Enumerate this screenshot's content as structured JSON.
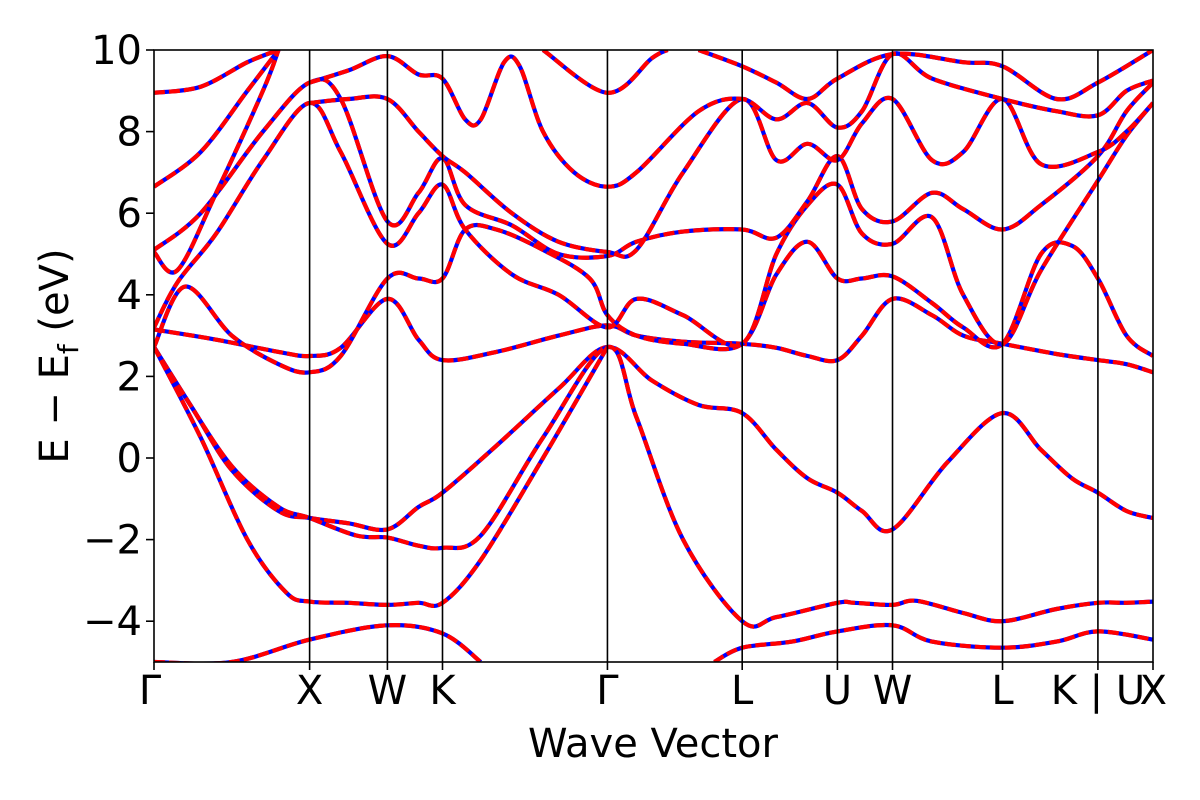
{
  "chart_data": {
    "type": "line",
    "xlabel": "Wave Vector",
    "ylabel": "E − E",
    "ylabel_sub": "f",
    "ylabel_unit": " (eV)",
    "ylim": [
      -5,
      10
    ],
    "yticks": [
      10,
      8,
      6,
      4,
      2,
      0,
      -2,
      -4
    ],
    "ytick_labels": [
      "10",
      "8",
      "6",
      "4",
      "2",
      "0",
      "−2",
      "−4"
    ],
    "grid": false,
    "legend": "none",
    "kpoints": [
      {
        "label": "Γ",
        "pos": 0
      },
      {
        "label": "X",
        "pos": 1.0
      },
      {
        "label": "W",
        "pos": 1.5
      },
      {
        "label": "K",
        "pos": 1.854
      },
      {
        "label": "Γ",
        "pos": 2.914
      },
      {
        "label": "L",
        "pos": 3.78
      },
      {
        "label": "U",
        "pos": 4.392
      },
      {
        "label": "W",
        "pos": 4.746
      },
      {
        "label": "L",
        "pos": 5.453
      },
      {
        "label": "K | U",
        "pos": 6.066
      },
      {
        "label": "X",
        "pos": 6.42
      }
    ],
    "colors": {
      "series_a": "#0000ff",
      "series_b": "#ff0000"
    },
    "series": [
      {
        "values": [
          [
            0,
            2.72
          ],
          [
            0.25,
            1.2
          ],
          [
            0.5,
            -0.3
          ],
          [
            0.8,
            -1.3
          ],
          [
            1.0,
            -1.47
          ],
          [
            1.25,
            -1.6
          ],
          [
            1.5,
            -1.75
          ],
          [
            1.7,
            -1.2
          ],
          [
            1.854,
            -0.85
          ],
          [
            2.2,
            0.3
          ],
          [
            2.6,
            1.7
          ],
          [
            2.914,
            2.72
          ],
          [
            3.2,
            1.9
          ],
          [
            3.5,
            1.3
          ],
          [
            3.78,
            1.1
          ],
          [
            4.0,
            0.2
          ],
          [
            4.2,
            -0.5
          ],
          [
            4.392,
            -0.85
          ],
          [
            4.55,
            -1.3
          ],
          [
            4.746,
            -1.75
          ],
          [
            5.1,
            -0.1
          ],
          [
            5.453,
            1.1
          ],
          [
            5.7,
            0.2
          ],
          [
            5.9,
            -0.5
          ],
          [
            6.066,
            -0.85
          ],
          [
            6.25,
            -1.3
          ],
          [
            6.42,
            -1.47
          ]
        ]
      },
      {
        "values": [
          [
            0,
            2.72
          ],
          [
            0.2,
            1.5
          ],
          [
            0.5,
            -0.2
          ],
          [
            0.8,
            -1.2
          ],
          [
            1.0,
            -1.47
          ],
          [
            1.3,
            -1.9
          ],
          [
            1.5,
            -1.95
          ],
          [
            1.7,
            -2.15
          ],
          [
            1.854,
            -2.2
          ],
          [
            2.1,
            -1.9
          ],
          [
            2.5,
            0.5
          ],
          [
            2.914,
            2.72
          ],
          [
            3.1,
            1.0
          ],
          [
            3.4,
            -2.0
          ],
          [
            3.78,
            -4.0
          ],
          [
            4.0,
            -3.9
          ],
          [
            4.392,
            -3.55
          ],
          [
            4.5,
            -3.55
          ],
          [
            4.746,
            -3.6
          ],
          [
            4.9,
            -3.5
          ],
          [
            5.2,
            -3.8
          ],
          [
            5.453,
            -4.0
          ],
          [
            5.8,
            -3.7
          ],
          [
            6.066,
            -3.55
          ],
          [
            6.25,
            -3.55
          ],
          [
            6.42,
            -3.52
          ]
        ]
      },
      {
        "values": [
          [
            0,
            2.72
          ],
          [
            0.3,
            0.5
          ],
          [
            0.6,
            -2.0
          ],
          [
            0.85,
            -3.3
          ],
          [
            1.0,
            -3.52
          ],
          [
            1.25,
            -3.55
          ],
          [
            1.5,
            -3.6
          ],
          [
            1.7,
            -3.55
          ],
          [
            1.854,
            -3.55
          ],
          [
            2.1,
            -2.5
          ],
          [
            2.5,
            0.0
          ],
          [
            2.914,
            2.72
          ]
        ]
      },
      {
        "values": [
          [
            0,
            3.15
          ],
          [
            0.4,
            2.9
          ],
          [
            0.8,
            2.6
          ],
          [
            1.0,
            2.5
          ],
          [
            1.2,
            2.7
          ],
          [
            1.5,
            3.9
          ],
          [
            1.7,
            2.9
          ],
          [
            1.854,
            2.4
          ],
          [
            2.2,
            2.6
          ],
          [
            2.6,
            3.0
          ],
          [
            2.914,
            3.25
          ],
          [
            3.1,
            3.0
          ],
          [
            3.4,
            2.85
          ],
          [
            3.78,
            2.8
          ],
          [
            4.0,
            2.7
          ],
          [
            4.2,
            2.5
          ],
          [
            4.392,
            2.4
          ],
          [
            4.55,
            3.0
          ],
          [
            4.746,
            3.9
          ],
          [
            5.0,
            3.5
          ],
          [
            5.2,
            3.0
          ],
          [
            5.453,
            2.8
          ],
          [
            5.8,
            2.55
          ],
          [
            6.066,
            2.4
          ],
          [
            6.25,
            2.3
          ],
          [
            6.42,
            2.1
          ]
        ]
      },
      {
        "values": [
          [
            0,
            2.72
          ],
          [
            0.2,
            4.2
          ],
          [
            0.5,
            3.0
          ],
          [
            0.8,
            2.3
          ],
          [
            1.0,
            2.1
          ],
          [
            1.2,
            2.5
          ],
          [
            1.5,
            4.4
          ],
          [
            1.7,
            4.4
          ],
          [
            1.854,
            4.4
          ],
          [
            2.0,
            5.6
          ],
          [
            2.2,
            5.6
          ],
          [
            2.5,
            5.1
          ],
          [
            2.8,
            4.4
          ],
          [
            2.914,
            3.5
          ],
          [
            3.1,
            3.0
          ],
          [
            3.4,
            2.8
          ],
          [
            3.78,
            2.8
          ],
          [
            4.0,
            4.5
          ],
          [
            4.2,
            5.3
          ],
          [
            4.392,
            4.4
          ],
          [
            4.55,
            4.4
          ],
          [
            4.746,
            4.45
          ],
          [
            5.0,
            3.8
          ],
          [
            5.2,
            3.2
          ],
          [
            5.453,
            2.8
          ],
          [
            5.7,
            5.0
          ],
          [
            5.9,
            5.2
          ],
          [
            6.066,
            4.4
          ],
          [
            6.25,
            3.0
          ],
          [
            6.42,
            2.5
          ]
        ]
      },
      {
        "values": [
          [
            0,
            3.2
          ],
          [
            0.15,
            4.3
          ],
          [
            0.4,
            5.5
          ],
          [
            0.7,
            7.3
          ],
          [
            1.0,
            8.7
          ],
          [
            1.2,
            7.5
          ],
          [
            1.5,
            5.25
          ],
          [
            1.7,
            6.0
          ],
          [
            1.854,
            6.7
          ],
          [
            2.0,
            5.6
          ],
          [
            2.3,
            4.5
          ],
          [
            2.6,
            4.0
          ],
          [
            2.914,
            3.2
          ],
          [
            3.1,
            3.9
          ],
          [
            3.4,
            3.5
          ],
          [
            3.78,
            2.8
          ],
          [
            4.0,
            5.0
          ],
          [
            4.2,
            6.2
          ],
          [
            4.392,
            6.7
          ],
          [
            4.55,
            5.5
          ],
          [
            4.746,
            5.25
          ],
          [
            5.0,
            5.9
          ],
          [
            5.2,
            4.0
          ],
          [
            5.453,
            2.8
          ],
          [
            5.7,
            4.6
          ],
          [
            6.066,
            6.8
          ],
          [
            6.25,
            7.9
          ],
          [
            6.42,
            8.7
          ]
        ]
      },
      {
        "values": [
          [
            0,
            5.1
          ],
          [
            0.3,
            6.0
          ],
          [
            0.7,
            8.0
          ],
          [
            1.0,
            9.2
          ],
          [
            1.2,
            8.8
          ],
          [
            1.5,
            5.8
          ],
          [
            1.7,
            6.5
          ],
          [
            1.854,
            7.35
          ],
          [
            2.0,
            6.2
          ],
          [
            2.3,
            5.7
          ],
          [
            2.6,
            5.0
          ],
          [
            2.914,
            4.95
          ],
          [
            3.1,
            5.3
          ],
          [
            3.4,
            5.55
          ],
          [
            3.78,
            5.6
          ],
          [
            4.0,
            5.4
          ],
          [
            4.2,
            6.3
          ],
          [
            4.392,
            7.4
          ],
          [
            4.55,
            6.1
          ],
          [
            4.746,
            5.8
          ],
          [
            5.0,
            6.5
          ],
          [
            5.2,
            6.1
          ],
          [
            5.453,
            5.6
          ],
          [
            5.7,
            6.2
          ],
          [
            6.066,
            7.4
          ],
          [
            6.25,
            8.5
          ],
          [
            6.42,
            9.2
          ]
        ]
      },
      {
        "values": [
          [
            0,
            6.65
          ],
          [
            0.3,
            7.5
          ],
          [
            0.6,
            9.0
          ],
          [
            0.8,
            10.0
          ]
        ]
      },
      {
        "values": [
          [
            0,
            8.95
          ],
          [
            0.3,
            9.1
          ],
          [
            0.6,
            9.7
          ],
          [
            0.8,
            10.0
          ]
        ]
      },
      {
        "values": [
          [
            0,
            5.05
          ],
          [
            0.15,
            4.6
          ],
          [
            0.4,
            6.5
          ],
          [
            0.7,
            9.0
          ],
          [
            0.8,
            10.0
          ]
        ]
      },
      {
        "values": [
          [
            1.0,
            8.7
          ],
          [
            1.25,
            8.8
          ],
          [
            1.5,
            8.8
          ],
          [
            1.7,
            8.0
          ],
          [
            1.854,
            7.4
          ],
          [
            2.0,
            7.0
          ],
          [
            2.3,
            6.0
          ],
          [
            2.6,
            5.3
          ],
          [
            2.914,
            5.05
          ],
          [
            3.1,
            5.1
          ],
          [
            3.4,
            7.0
          ],
          [
            3.78,
            8.8
          ],
          [
            4.0,
            7.3
          ],
          [
            4.2,
            7.7
          ],
          [
            4.392,
            7.3
          ],
          [
            4.55,
            8.2
          ],
          [
            4.746,
            8.8
          ],
          [
            5.0,
            7.3
          ],
          [
            5.2,
            7.5
          ],
          [
            5.453,
            8.8
          ],
          [
            5.7,
            7.2
          ],
          [
            6.066,
            7.5
          ],
          [
            6.25,
            8.0
          ],
          [
            6.42,
            8.7
          ]
        ]
      },
      {
        "values": [
          [
            1.0,
            9.2
          ],
          [
            1.25,
            9.5
          ],
          [
            1.5,
            9.85
          ],
          [
            1.7,
            9.4
          ],
          [
            1.854,
            9.3
          ],
          [
            2.0,
            8.3
          ],
          [
            2.1,
            8.3
          ],
          [
            2.25,
            9.7
          ],
          [
            2.35,
            9.6
          ],
          [
            2.5,
            8.0
          ],
          [
            2.7,
            7.0
          ],
          [
            2.914,
            6.65
          ],
          [
            3.1,
            7.0
          ],
          [
            3.5,
            8.5
          ],
          [
            3.78,
            8.8
          ],
          [
            4.0,
            8.3
          ],
          [
            4.2,
            8.7
          ],
          [
            4.392,
            8.1
          ],
          [
            4.55,
            8.5
          ],
          [
            4.746,
            9.9
          ],
          [
            5.0,
            9.3
          ],
          [
            5.453,
            8.8
          ],
          [
            5.8,
            8.5
          ],
          [
            6.066,
            8.4
          ],
          [
            6.25,
            9.0
          ],
          [
            6.42,
            9.25
          ]
        ]
      },
      {
        "values": [
          [
            2.5,
            10.0
          ],
          [
            2.914,
            8.95
          ],
          [
            3.2,
            9.8
          ],
          [
            3.3,
            10.0
          ]
        ]
      },
      {
        "values": [
          [
            3.5,
            10.0
          ],
          [
            3.78,
            9.6
          ],
          [
            4.0,
            9.2
          ],
          [
            4.2,
            8.8
          ],
          [
            4.392,
            9.3
          ],
          [
            4.746,
            9.9
          ],
          [
            5.2,
            9.7
          ],
          [
            5.453,
            9.6
          ],
          [
            5.8,
            8.8
          ],
          [
            6.066,
            9.2
          ],
          [
            6.42,
            10.0
          ]
        ]
      },
      {
        "values": [
          [
            0,
            -5.0
          ],
          [
            0.5,
            -5.0
          ],
          [
            1.0,
            -4.45
          ],
          [
            1.5,
            -4.1
          ],
          [
            1.854,
            -4.3
          ],
          [
            2.1,
            -5.0
          ]
        ]
      },
      {
        "values": [
          [
            3.6,
            -5.0
          ],
          [
            3.78,
            -4.65
          ],
          [
            4.1,
            -4.5
          ],
          [
            4.392,
            -4.25
          ],
          [
            4.746,
            -4.1
          ],
          [
            5.0,
            -4.5
          ],
          [
            5.453,
            -4.65
          ],
          [
            5.8,
            -4.5
          ],
          [
            6.066,
            -4.25
          ],
          [
            6.42,
            -4.45
          ]
        ]
      }
    ]
  }
}
